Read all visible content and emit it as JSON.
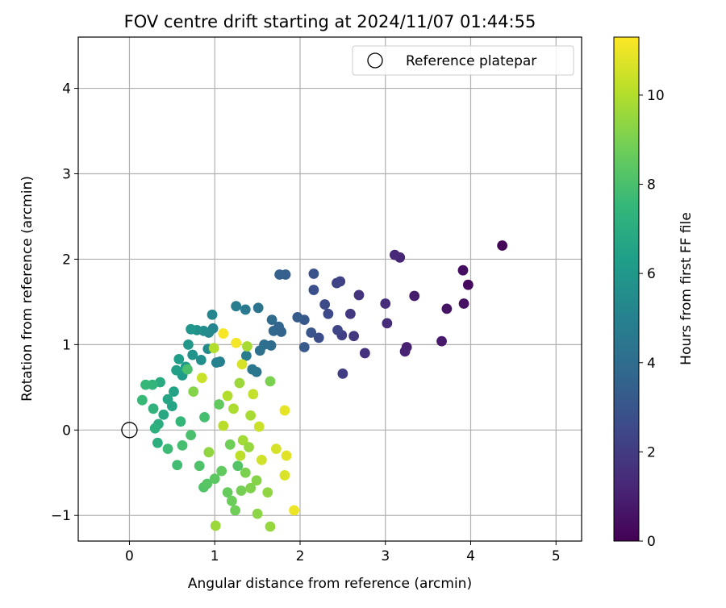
{
  "chart_data": {
    "type": "scatter",
    "title": "FOV centre drift starting at 2024/11/07 01:44:55",
    "xlabel": "Angular distance from reference (arcmin)",
    "ylabel": "Rotation from reference (arcmin)",
    "xlim": [
      -0.6,
      5.3
    ],
    "ylim": [
      -1.3,
      4.6
    ],
    "xticks": [
      0,
      1,
      2,
      3,
      4,
      5
    ],
    "yticks": [
      -1,
      0,
      1,
      2,
      3,
      4
    ],
    "xtick_labels": [
      "0",
      "1",
      "2",
      "3",
      "4",
      "5"
    ],
    "ytick_labels": [
      "−1",
      "0",
      "1",
      "2",
      "3",
      "4"
    ],
    "grid": true,
    "legend": {
      "placement": "top-right",
      "entries": [
        "Reference platepar"
      ]
    },
    "reference_point": {
      "x": 0,
      "y": 0,
      "label": "Reference platepar"
    },
    "colorbar": {
      "label": "Hours from first FF file",
      "range": [
        0,
        11.3
      ],
      "ticks": [
        0,
        2,
        4,
        6,
        8,
        10
      ],
      "tick_labels": [
        "0",
        "2",
        "4",
        "6",
        "8",
        "10"
      ],
      "colormap": "viridis"
    },
    "colormap_stops": [
      "#440154",
      "#482878",
      "#3e4989",
      "#31688e",
      "#26828e",
      "#1f9e89",
      "#35b779",
      "#6ece58",
      "#b5de2b",
      "#fde725"
    ],
    "points": [
      [
        4.37,
        2.16,
        0.1
      ],
      [
        3.97,
        1.7,
        0.3
      ],
      [
        3.91,
        1.87,
        0.4
      ],
      [
        3.92,
        1.48,
        0.5
      ],
      [
        3.72,
        1.42,
        0.6
      ],
      [
        3.66,
        1.04,
        0.8
      ],
      [
        3.34,
        1.57,
        0.9
      ],
      [
        3.25,
        0.97,
        1.0
      ],
      [
        3.23,
        0.92,
        1.1
      ],
      [
        3.17,
        2.02,
        1.2
      ],
      [
        3.11,
        2.05,
        1.3
      ],
      [
        3.02,
        1.25,
        1.4
      ],
      [
        3.0,
        1.48,
        1.5
      ],
      [
        2.76,
        0.9,
        1.6
      ],
      [
        2.69,
        1.58,
        1.7
      ],
      [
        2.63,
        1.1,
        1.8
      ],
      [
        2.59,
        1.36,
        1.9
      ],
      [
        2.5,
        0.66,
        2.0
      ],
      [
        2.49,
        1.11,
        2.1
      ],
      [
        2.47,
        1.74,
        2.2
      ],
      [
        2.43,
        1.72,
        2.3
      ],
      [
        2.44,
        1.17,
        2.4
      ],
      [
        2.33,
        1.36,
        2.5
      ],
      [
        2.29,
        1.47,
        2.6
      ],
      [
        2.22,
        1.08,
        2.7
      ],
      [
        2.16,
        1.64,
        2.8
      ],
      [
        2.16,
        1.83,
        2.9
      ],
      [
        2.13,
        1.14,
        3.0
      ],
      [
        2.05,
        1.29,
        3.1
      ],
      [
        2.05,
        0.97,
        3.2
      ],
      [
        1.97,
        1.32,
        3.3
      ],
      [
        1.83,
        1.82,
        3.4
      ],
      [
        1.76,
        1.82,
        3.5
      ],
      [
        1.78,
        1.15,
        3.6
      ],
      [
        1.75,
        1.21,
        3.7
      ],
      [
        1.69,
        1.16,
        3.8
      ],
      [
        1.67,
        1.29,
        3.9
      ],
      [
        1.66,
        0.99,
        4.0
      ],
      [
        1.58,
        1.0,
        4.1
      ],
      [
        1.53,
        0.93,
        4.2
      ],
      [
        1.51,
        1.43,
        4.3
      ],
      [
        1.49,
        0.68,
        4.4
      ],
      [
        1.44,
        0.71,
        4.5
      ],
      [
        1.36,
        1.41,
        4.6
      ],
      [
        1.37,
        0.87,
        4.7
      ],
      [
        1.25,
        1.45,
        4.8
      ],
      [
        1.06,
        0.8,
        4.9
      ],
      [
        1.02,
        0.79,
        5.0
      ],
      [
        0.98,
        1.19,
        5.1
      ],
      [
        0.97,
        1.35,
        5.2
      ],
      [
        0.93,
        1.14,
        5.3
      ],
      [
        0.92,
        0.95,
        5.4
      ],
      [
        0.87,
        1.16,
        5.5
      ],
      [
        0.84,
        0.82,
        5.6
      ],
      [
        0.79,
        1.17,
        5.7
      ],
      [
        0.74,
        0.88,
        5.8
      ],
      [
        0.72,
        1.18,
        5.9
      ],
      [
        0.69,
        1.0,
        6.0
      ],
      [
        0.66,
        0.74,
        6.1
      ],
      [
        0.62,
        0.64,
        6.2
      ],
      [
        0.58,
        0.83,
        6.3
      ],
      [
        0.55,
        0.7,
        6.4
      ],
      [
        0.52,
        0.45,
        6.5
      ],
      [
        0.5,
        0.28,
        6.6
      ],
      [
        0.45,
        0.36,
        6.7
      ],
      [
        0.4,
        0.18,
        6.8
      ],
      [
        0.36,
        0.56,
        6.9
      ],
      [
        0.34,
        0.07,
        7.0
      ],
      [
        0.33,
        -0.15,
        7.1
      ],
      [
        0.3,
        0.02,
        7.2
      ],
      [
        0.28,
        0.25,
        7.3
      ],
      [
        0.27,
        0.53,
        7.4
      ],
      [
        0.19,
        0.53,
        7.5
      ],
      [
        0.15,
        0.35,
        7.6
      ],
      [
        0.45,
        -0.22,
        7.7
      ],
      [
        0.56,
        -0.41,
        7.8
      ],
      [
        0.62,
        -0.18,
        7.9
      ],
      [
        0.72,
        -0.06,
        8.0
      ],
      [
        0.82,
        -0.42,
        8.1
      ],
      [
        0.87,
        -0.67,
        8.2
      ],
      [
        0.91,
        -0.63,
        8.3
      ],
      [
        1.0,
        -0.57,
        8.4
      ],
      [
        1.08,
        -0.48,
        8.5
      ],
      [
        1.15,
        -0.73,
        8.6
      ],
      [
        1.2,
        -0.83,
        8.7
      ],
      [
        1.24,
        -0.94,
        8.8
      ],
      [
        1.31,
        -0.71,
        8.9
      ],
      [
        1.36,
        -0.5,
        9.0
      ],
      [
        1.42,
        -0.68,
        9.1
      ],
      [
        1.49,
        -0.59,
        9.2
      ],
      [
        1.5,
        -0.98,
        9.3
      ],
      [
        1.62,
        -0.73,
        9.4
      ],
      [
        1.65,
        -1.13,
        9.5
      ],
      [
        1.01,
        -1.12,
        9.6
      ],
      [
        1.33,
        -0.12,
        9.7
      ],
      [
        1.42,
        0.17,
        9.8
      ],
      [
        1.22,
        0.25,
        9.9
      ],
      [
        1.15,
        0.4,
        10.0
      ],
      [
        1.1,
        0.05,
        10.1
      ],
      [
        1.3,
        -0.3,
        10.2
      ],
      [
        1.45,
        0.42,
        10.3
      ],
      [
        1.52,
        0.04,
        10.4
      ],
      [
        1.55,
        -0.35,
        10.5
      ],
      [
        1.72,
        -0.22,
        10.6
      ],
      [
        1.82,
        -0.53,
        10.7
      ],
      [
        1.84,
        -0.3,
        10.8
      ],
      [
        1.82,
        0.23,
        10.9
      ],
      [
        1.93,
        -0.94,
        11.0
      ],
      [
        1.25,
        1.02,
        11.1
      ],
      [
        1.1,
        1.13,
        11.2
      ],
      [
        0.99,
        0.96,
        10.0
      ],
      [
        1.29,
        0.55,
        9.6
      ],
      [
        1.32,
        0.77,
        10.6
      ],
      [
        1.38,
        0.98,
        9.8
      ],
      [
        1.65,
        0.57,
        9.0
      ],
      [
        0.85,
        0.61,
        10.4
      ],
      [
        0.68,
        0.71,
        8.0
      ],
      [
        1.18,
        -0.17,
        8.8
      ],
      [
        0.93,
        -0.26,
        9.4
      ],
      [
        0.6,
        0.1,
        7.5
      ],
      [
        0.75,
        0.45,
        9.2
      ],
      [
        1.05,
        0.3,
        8.5
      ],
      [
        0.88,
        0.15,
        7.9
      ],
      [
        1.4,
        -0.2,
        9.5
      ],
      [
        1.27,
        -0.42,
        8.2
      ]
    ]
  }
}
